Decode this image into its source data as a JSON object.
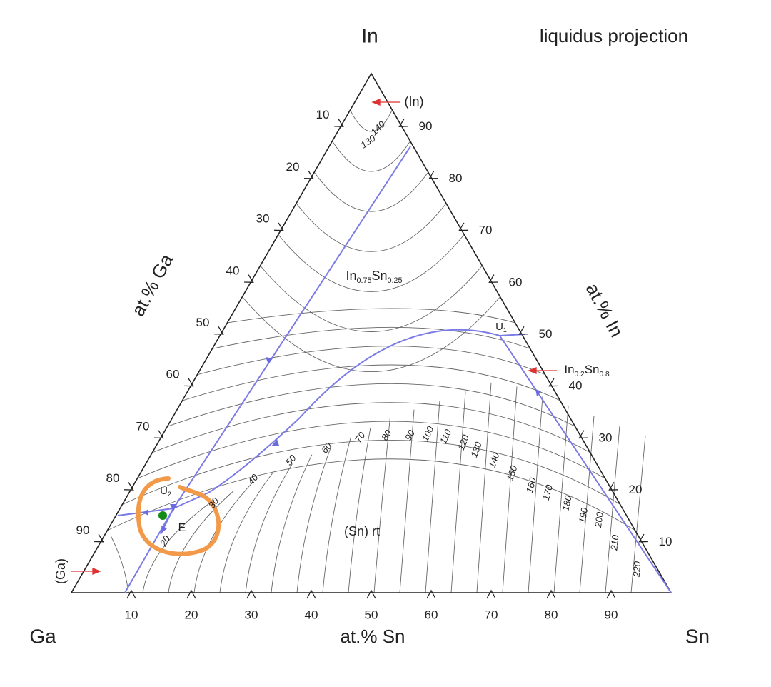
{
  "title": "liquidus projection",
  "corners": {
    "top": "In",
    "left": "Ga",
    "right": "Sn"
  },
  "axes": {
    "bottom": {
      "label": "at.% Sn",
      "ticks": [
        10,
        20,
        30,
        40,
        50,
        60,
        70,
        80,
        90
      ]
    },
    "left": {
      "label": "at.% Ga",
      "ticks": [
        10,
        20,
        30,
        40,
        50,
        60,
        70,
        80,
        90
      ]
    },
    "right": {
      "label": "at.% In",
      "ticks": [
        10,
        20,
        30,
        40,
        50,
        60,
        70,
        80,
        90
      ]
    }
  },
  "phases": [
    {
      "parts": [
        "(In)"
      ]
    },
    {
      "parts": [
        "(Ga)"
      ]
    },
    {
      "parts": [
        "In",
        "0.75",
        "Sn",
        "0.25"
      ]
    },
    {
      "parts": [
        "In",
        "0.2",
        "Sn",
        "0.8"
      ]
    },
    {
      "parts": [
        "(Sn) rt"
      ]
    }
  ],
  "points": [
    {
      "parts": [
        "U",
        "1"
      ]
    },
    {
      "parts": [
        "U",
        "2"
      ]
    },
    {
      "parts": [
        "E"
      ]
    }
  ],
  "isotherms": [
    140,
    130,
    20,
    30,
    40,
    50,
    60,
    70,
    80,
    90,
    100,
    110,
    120,
    130,
    140,
    150,
    160,
    170,
    180,
    190,
    200,
    210,
    220
  ]
}
